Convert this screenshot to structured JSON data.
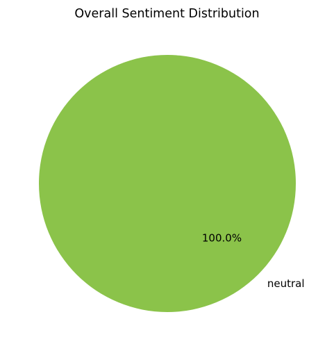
{
  "chart_data": {
    "type": "pie",
    "title": "Overall Sentiment Distribution",
    "slices": [
      {
        "label": "neutral",
        "value": 100.0,
        "percent_label": "100.0%",
        "color": "#8bc34a"
      }
    ]
  }
}
